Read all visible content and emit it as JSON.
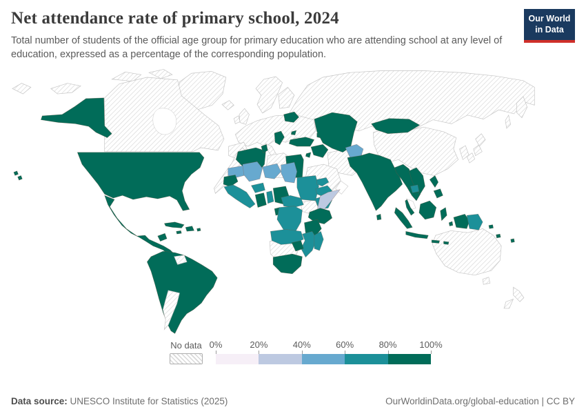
{
  "header": {
    "title": "Net attendance rate of primary school, 2024",
    "subtitle": "Total number of students of the official age group for primary education who are attending school at any level of education, expressed as a percentage of the corresponding population.",
    "logo": {
      "line1": "Our World",
      "line2": "in Data"
    }
  },
  "legend": {
    "no_data_label": "No data",
    "tick_labels": [
      "0%",
      "20%",
      "40%",
      "60%",
      "80%",
      "100%"
    ]
  },
  "footer": {
    "source_label": "Data source:",
    "source_text": " UNESCO Institute for Statistics (2025)",
    "right_text": "OurWorldinData.org/global-education | CC BY"
  },
  "chart_data": {
    "type": "choropleth_map",
    "title": "Net attendance rate of primary school, 2024",
    "unit": "% of the corresponding population",
    "legend_position": "bottom",
    "bins": [
      {
        "range": "0-20%",
        "color": "#f6eff7"
      },
      {
        "range": "20-40%",
        "color": "#bdc9e1"
      },
      {
        "range": "40-60%",
        "color": "#67a9cf"
      },
      {
        "range": "60-80%",
        "color": "#1c9099"
      },
      {
        "range": "80-100%",
        "color": "#016c59"
      },
      {
        "range": "No data",
        "color": "hatched"
      }
    ],
    "bin_colors": {
      "0-20": "#f6eff7",
      "20-40": "#bdc9e1",
      "40-60": "#67a9cf",
      "60-80": "#1c9099",
      "80-100": "#016c59",
      "no-data": "hatch",
      "no-data-plain": "#ffffff"
    },
    "regions": {
      "arctic-islands": "no-data",
      "greenland": "no-data",
      "canada": "no-data",
      "europe-mainland": "no-data",
      "iberia": "no-data",
      "italy": "no-data",
      "scandinavia": "no-data",
      "finland": "no-data",
      "united-kingdom": "no-data",
      "ireland": "no-data",
      "iceland": "no-data",
      "russia": "no-data",
      "china": "no-data",
      "korea": "no-data",
      "japan": "no-data",
      "iran": "no-data",
      "saudi-arabia": "no-data",
      "morocco": "no-data",
      "libya": "no-data",
      "south-sudan": "no-data",
      "namibia-botswana": "no-data",
      "australia": "no-data",
      "new-zealand": "no-data",
      "argentina": "no-data",
      "guyanas": "no-data",
      "oman": "no-data-plain",
      "malaysia": "no-data-plain",
      "alaska": "80-100",
      "hawaii": "80-100",
      "usa": "80-100",
      "mexico-central-america": "80-100",
      "yucatan": "80-100",
      "cuba": "80-100",
      "hispaniola": "80-100",
      "jamaica": "80-100",
      "puerto-rico": "80-100",
      "south-america": "80-100",
      "belarus": "80-100",
      "moldova": "80-100",
      "balkans": "80-100",
      "turkey": "80-100",
      "caucasus": "80-100",
      "iraq": "80-100",
      "jordan": "80-100",
      "kazakhstan-central-asia": "80-100",
      "mongolia": "80-100",
      "pakistan-india": "80-100",
      "sri-lanka": "80-100",
      "myanmar-thailand": "80-100",
      "vietnam-laos": "80-100",
      "thai-peninsula": "80-100",
      "sumatra": "80-100",
      "java": "80-100",
      "borneo": "80-100",
      "sulawesi": "80-100",
      "lesser-sunda": "80-100",
      "moluccas": "80-100",
      "west-new-guinea": "80-100",
      "solomon-fiji": "80-100",
      "philippines": "80-100",
      "algeria": "80-100",
      "tunisia": "80-100",
      "egypt": "80-100",
      "senegal": "80-100",
      "ghana": "80-100",
      "nigeria": "80-100",
      "gabon-congo": "80-100",
      "uganda-kenya": "80-100",
      "tanzania": "80-100",
      "zimbabwe": "80-100",
      "south-africa": "80-100",
      "guinea-coast": "60-80",
      "burkina-faso": "60-80",
      "togo-benin": "60-80",
      "sudan": "60-80",
      "eritrea": "60-80",
      "ethiopia": "60-80",
      "yemen": "60-80",
      "cameroon-car": "60-80",
      "drc": "60-80",
      "angola-zambia": "60-80",
      "malawi-mozambique": "60-80",
      "madagascar": "60-80",
      "cambodia": "60-80",
      "papua-new-guinea": "60-80",
      "mauritania": "40-60",
      "mali": "40-60",
      "niger": "40-60",
      "chad": "40-60",
      "afghanistan": "40-60",
      "somalia": "20-40"
    }
  }
}
